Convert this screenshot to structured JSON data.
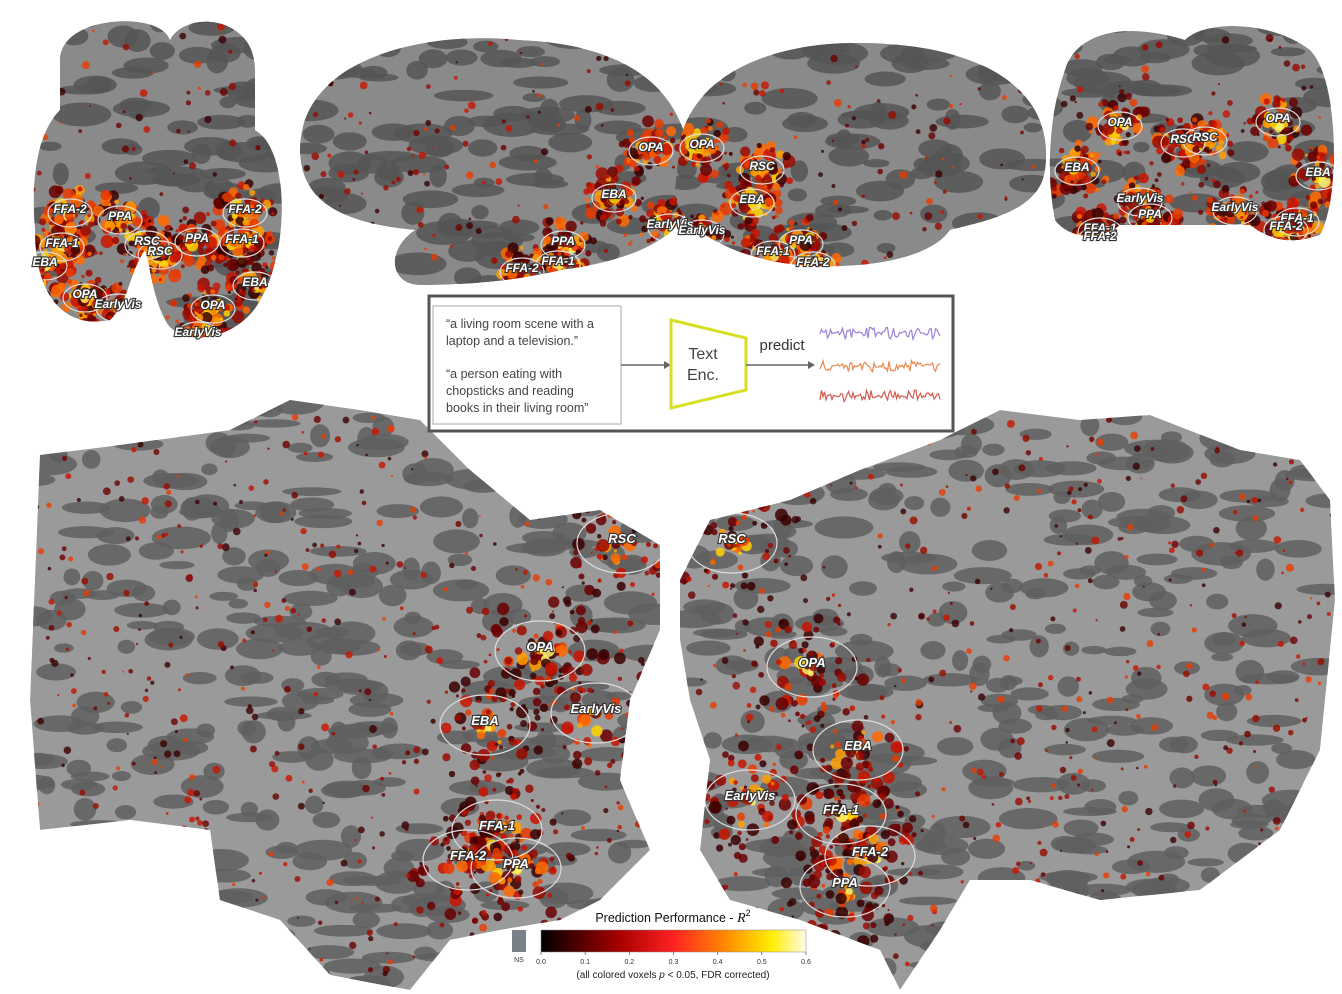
{
  "views": [
    {
      "labels": [
        "FFA-2",
        "PPA",
        "FFA-1",
        "EBA",
        "RSC",
        "RSC",
        "OPA",
        "EarlyVis",
        "FFA-2",
        "PPA",
        "FFA-1",
        "EBA",
        "OPA",
        "EarlyVis"
      ]
    },
    {
      "labels": [
        "OPA",
        "EBA",
        "EarlyVis",
        "PPA",
        "FFA-1",
        "FFA-2"
      ]
    },
    {
      "labels": [
        "OPA",
        "RSC",
        "EBA",
        "EarlyVis",
        "PPA",
        "FFA-1",
        "FFA-2"
      ]
    },
    {
      "labels": [
        "OPA",
        "RSC",
        "RSC",
        "OPA",
        "EBA",
        "EarlyVis",
        "PPA",
        "EarlyVis",
        "EBA",
        "FFA-1",
        "FFA-2",
        "FFA-1",
        "FFA-2"
      ]
    },
    {
      "labels": [
        "RSC",
        "OPA",
        "EarlyVis",
        "EBA",
        "FFA-1",
        "FFA-2",
        "PPA"
      ]
    },
    {
      "labels": [
        "RSC",
        "OPA",
        "EBA",
        "EarlyVis",
        "FFA-1",
        "FFA-2",
        "PPA"
      ]
    }
  ],
  "inset": {
    "captions": [
      [
        "“a living room scene with a",
        "laptop and a television.”"
      ],
      [
        "“a person eating with",
        "chopsticks and reading",
        "books in their living room”"
      ]
    ],
    "encoder": [
      "Text",
      "Enc."
    ],
    "arrow_label": "predict"
  },
  "colorbar": {
    "title": "Prediction Performance - ",
    "symbol": "R",
    "exponent": "2",
    "ns_label": "NS",
    "lim": [
      0,
      0.6
    ],
    "ticks": [
      {
        "value": 0,
        "label": "0.0"
      },
      0.1,
      0.2,
      0.3,
      0.4,
      0.5,
      0.6
    ],
    "caption_start": "(all colored voxels ",
    "caption_symbol": "p",
    "caption_end": " < 0.05, FDR corrected)"
  }
}
